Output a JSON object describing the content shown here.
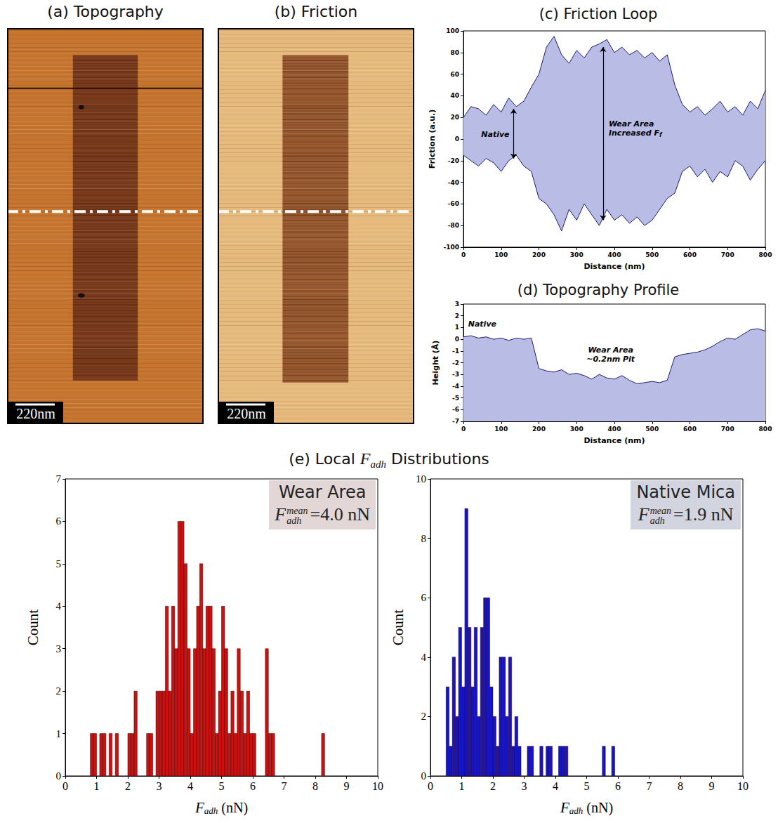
{
  "images": [
    {
      "title": "(a) Topography",
      "scale_bar": "220nm"
    },
    {
      "title": "(b) Friction",
      "scale_bar": "220nm"
    }
  ],
  "section_title": {
    "before": "(e) Local ",
    "symbol": "F",
    "sub": "adh",
    "after": " Distributions"
  },
  "chart_data": [
    {
      "type": "line",
      "title": "(c) Friction Loop",
      "xlabel": "Distance (nm)",
      "ylabel": "Friction (a.u.)",
      "x": [
        0,
        20,
        40,
        60,
        80,
        100,
        120,
        140,
        160,
        180,
        200,
        220,
        240,
        260,
        280,
        300,
        320,
        340,
        360,
        380,
        400,
        420,
        440,
        460,
        480,
        500,
        520,
        540,
        560,
        580,
        600,
        620,
        640,
        660,
        680,
        700,
        720,
        740,
        760,
        780,
        800
      ],
      "series": [
        {
          "values": [
            20,
            30,
            28,
            22,
            32,
            25,
            38,
            30,
            35,
            48,
            60,
            85,
            95,
            78,
            70,
            82,
            75,
            85,
            88,
            92,
            80,
            85,
            78,
            82,
            75,
            80,
            72,
            78,
            50,
            32,
            25,
            30,
            22,
            28,
            35,
            25,
            30,
            22,
            35,
            28,
            45
          ]
        },
        {
          "values": [
            -15,
            -20,
            -25,
            -18,
            -22,
            -30,
            -20,
            -15,
            -25,
            -30,
            -55,
            -60,
            -70,
            -85,
            -65,
            -75,
            -60,
            -70,
            -80,
            -65,
            -75,
            -70,
            -78,
            -72,
            -80,
            -75,
            -65,
            -55,
            -50,
            -30,
            -25,
            -35,
            -28,
            -40,
            -30,
            -35,
            -20,
            -25,
            -38,
            -28,
            -20
          ]
        }
      ],
      "color": "#1a1a6e",
      "xlim": [
        0,
        800
      ],
      "xticks": [
        0,
        100,
        200,
        300,
        400,
        500,
        600,
        700,
        800
      ],
      "ylim": [
        -100,
        100
      ],
      "yticks": [
        -100,
        -80,
        -60,
        -40,
        -20,
        0,
        20,
        40,
        60,
        80,
        100
      ],
      "grid": false,
      "annotations": [
        {
          "text": "Native"
        },
        {
          "text": "Wear Area Increased F",
          "sub": "f"
        }
      ]
    },
    {
      "type": "line",
      "title": "(d) Topography Profile",
      "xlabel": "Distance (nm)",
      "ylabel": "Height (Å)",
      "x": [
        0,
        20,
        40,
        60,
        80,
        100,
        120,
        140,
        160,
        180,
        200,
        220,
        240,
        260,
        280,
        300,
        320,
        340,
        360,
        380,
        400,
        420,
        440,
        460,
        480,
        500,
        520,
        540,
        560,
        580,
        600,
        620,
        640,
        660,
        680,
        700,
        720,
        740,
        760,
        780,
        800
      ],
      "series": [
        {
          "values": [
            0.2,
            0.3,
            0.1,
            0.2,
            0.0,
            0.1,
            -0.1,
            0.1,
            0.0,
            0.1,
            -2.5,
            -2.7,
            -2.8,
            -2.6,
            -3.0,
            -2.9,
            -3.1,
            -3.4,
            -3.0,
            -3.3,
            -3.4,
            -3.1,
            -3.5,
            -3.8,
            -3.7,
            -3.6,
            -3.7,
            -3.5,
            -1.5,
            -1.3,
            -1.2,
            -1.1,
            -0.9,
            -0.6,
            -0.2,
            0.1,
            0.0,
            0.4,
            0.8,
            0.9,
            0.7
          ]
        }
      ],
      "color": "#1a1a6e",
      "xlim": [
        0,
        800
      ],
      "xticks": [
        0,
        100,
        200,
        300,
        400,
        500,
        600,
        700,
        800
      ],
      "ylim": [
        -7,
        3
      ],
      "yticks": [
        -7,
        -6,
        -5,
        -4,
        -3,
        -2,
        -1,
        0,
        1,
        2,
        3
      ],
      "grid": false,
      "annotations": [
        {
          "text": "Native"
        },
        {
          "text": "Wear Area ~0.2nm Pit"
        }
      ]
    },
    {
      "type": "histogram",
      "label": "Wear Area",
      "stat": {
        "symbol": "F",
        "sup": "mean",
        "sub": "adh",
        "text": "=4.0 nN"
      },
      "xlabel": {
        "symbol": "F",
        "sub": "adh",
        "unit": "(nN)"
      },
      "ylabel": "Count",
      "bins": [
        0.8,
        0.9,
        1.0,
        1.1,
        1.2,
        1.3,
        1.4,
        1.5,
        1.6,
        1.7,
        1.8,
        1.9,
        2.0,
        2.1,
        2.2,
        2.3,
        2.4,
        2.5,
        2.6,
        2.7,
        2.8,
        2.9,
        3.0,
        3.1,
        3.2,
        3.3,
        3.4,
        3.5,
        3.6,
        3.7,
        3.8,
        3.9,
        4.0,
        4.1,
        4.2,
        4.3,
        4.4,
        4.5,
        4.6,
        4.7,
        4.8,
        4.9,
        5.0,
        5.1,
        5.2,
        5.3,
        5.4,
        5.5,
        5.6,
        5.7,
        5.8,
        5.9,
        6.0,
        6.1,
        6.2,
        6.3,
        6.4,
        6.5,
        6.6,
        6.7,
        6.8,
        6.9,
        7.0,
        7.1,
        7.2,
        7.3,
        7.4,
        7.5,
        7.6,
        7.7,
        7.8,
        7.9,
        8.0,
        8.1,
        8.2,
        8.3
      ],
      "counts": [
        1,
        1,
        0,
        1,
        1,
        0,
        1,
        0,
        1,
        0,
        0,
        0,
        1,
        1,
        2,
        0,
        0,
        0,
        1,
        1,
        0,
        2,
        2,
        2,
        4,
        2,
        4,
        3,
        6,
        6,
        5,
        3,
        1,
        3,
        4,
        5,
        3,
        4,
        4,
        3,
        1,
        2,
        4,
        3,
        1,
        2,
        1,
        3,
        2,
        1,
        2,
        1,
        1,
        0,
        0,
        0,
        3,
        1,
        1,
        0,
        0,
        0,
        0,
        0,
        0,
        0,
        0,
        0,
        0,
        0,
        0,
        0,
        0,
        0,
        1
      ],
      "color": "#cc1111",
      "xlim": [
        0,
        10
      ],
      "xticks": [
        0,
        1,
        2,
        3,
        4,
        5,
        6,
        7,
        8,
        9,
        10
      ],
      "ylim": [
        0,
        7
      ],
      "yticks": [
        0,
        1,
        2,
        3,
        4,
        5,
        6,
        7
      ],
      "grid": false
    },
    {
      "type": "histogram",
      "label": "Native Mica",
      "stat": {
        "symbol": "F",
        "sup": "mean",
        "sub": "adh",
        "text": "=1.9 nN"
      },
      "xlabel": {
        "symbol": "F",
        "sub": "adh",
        "unit": "(nN)"
      },
      "ylabel": "Count",
      "bins": [
        0.5,
        0.6,
        0.7,
        0.8,
        0.9,
        1.0,
        1.1,
        1.2,
        1.3,
        1.4,
        1.5,
        1.6,
        1.7,
        1.8,
        1.9,
        2.0,
        2.1,
        2.2,
        2.3,
        2.4,
        2.5,
        2.6,
        2.7,
        2.8,
        2.9,
        3.0,
        3.1,
        3.2,
        3.3,
        3.4,
        3.5,
        3.6,
        3.7,
        3.8,
        3.9,
        4.0,
        4.1,
        4.2,
        4.3,
        4.4,
        4.5,
        4.6,
        4.7,
        4.8,
        4.9,
        5.0,
        5.1,
        5.2,
        5.3,
        5.4,
        5.5,
        5.6,
        5.7,
        5.8,
        5.9
      ],
      "counts": [
        3,
        1,
        4,
        2,
        5,
        3,
        9,
        5,
        3,
        5,
        2,
        5,
        6,
        6,
        3,
        2,
        1,
        4,
        4,
        2,
        4,
        1,
        2,
        1,
        0,
        0,
        1,
        1,
        0,
        0,
        1,
        0,
        1,
        1,
        0,
        0,
        1,
        1,
        1,
        0,
        0,
        0,
        0,
        0,
        0,
        0,
        0,
        0,
        0,
        0,
        1,
        0,
        0,
        1
      ],
      "color": "#1414c8",
      "xlim": [
        0,
        10
      ],
      "xticks": [
        0,
        1,
        2,
        3,
        4,
        5,
        6,
        7,
        8,
        9,
        10
      ],
      "ylim": [
        0,
        10
      ],
      "yticks": [
        0,
        2,
        4,
        6,
        8,
        10
      ],
      "grid": false
    }
  ]
}
